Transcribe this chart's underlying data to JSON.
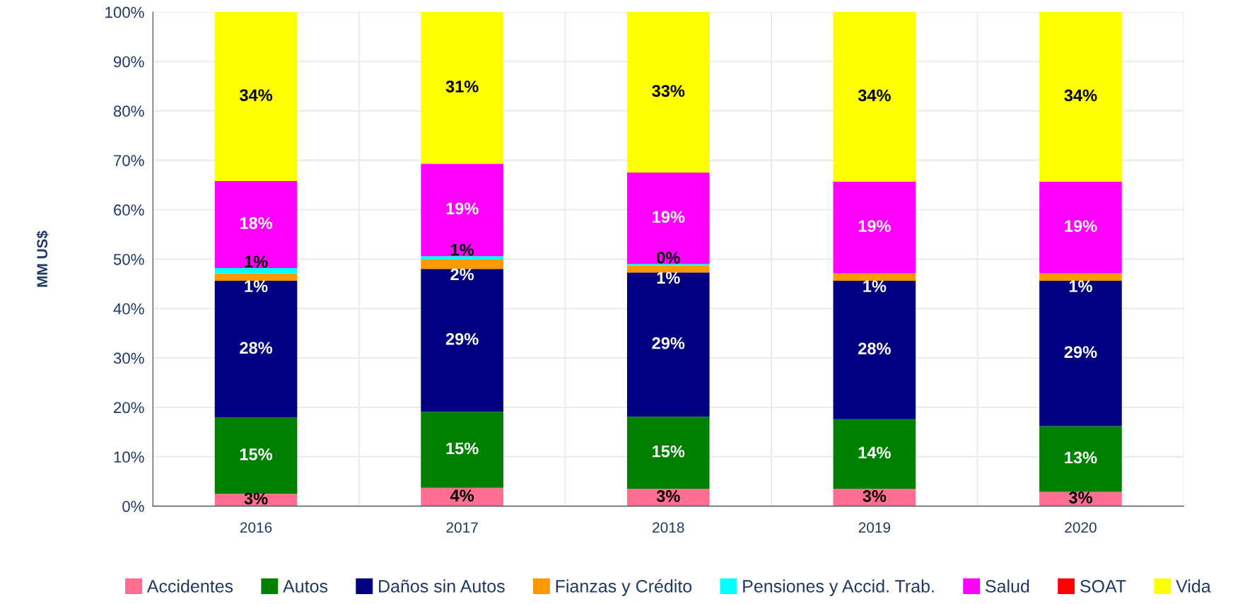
{
  "chart_data": {
    "type": "bar",
    "stacked": true,
    "ylabel": "MM US$",
    "categories": [
      "2016",
      "2017",
      "2018",
      "2019",
      "2020"
    ],
    "series": [
      {
        "name": "Accidentes",
        "color": "#ff6f91",
        "values": [
          2.5,
          3.7,
          3.5,
          3.5,
          2.9
        ],
        "value_labels": [
          "3%",
          "4%",
          "3%",
          "3%",
          "3%"
        ]
      },
      {
        "name": "Autos",
        "color": "#008000",
        "values": [
          15.4,
          15.4,
          14.6,
          14.1,
          13.3
        ],
        "value_labels": [
          "15%",
          "15%",
          "15%",
          "14%",
          "13%"
        ]
      },
      {
        "name": "Daños sin Autos",
        "color": "#000080",
        "values": [
          27.7,
          28.9,
          29.2,
          28.0,
          29.4
        ],
        "value_labels": [
          "28%",
          "29%",
          "29%",
          "28%",
          "29%"
        ]
      },
      {
        "name": "Fianzas y Crédito",
        "color": "#ff9900",
        "values": [
          1.5,
          1.9,
          1.4,
          1.5,
          1.5
        ],
        "value_labels": [
          "1%",
          "2%",
          "1%",
          "1%",
          "1%"
        ]
      },
      {
        "name": "Pensiones y Accid. Trab.",
        "color": "#00ffff",
        "values": [
          1.1,
          0.7,
          0.3,
          0,
          0
        ],
        "value_labels": [
          "1%",
          "1%",
          "0%",
          null,
          null
        ]
      },
      {
        "name": "Salud",
        "color": "#ff00ff",
        "values": [
          17.6,
          18.7,
          18.5,
          18.6,
          18.6
        ],
        "value_labels": [
          "18%",
          "19%",
          "19%",
          "19%",
          "19%"
        ]
      },
      {
        "name": "SOAT",
        "color": "#ff0000",
        "values": [
          0,
          0,
          0,
          0,
          0
        ],
        "value_labels": [
          null,
          null,
          null,
          null,
          null
        ]
      },
      {
        "name": "Vida",
        "color": "#ffff00",
        "values": [
          34.2,
          30.7,
          32.5,
          34.3,
          34.3
        ],
        "value_labels": [
          "34%",
          "31%",
          "33%",
          "34%",
          "34%"
        ]
      }
    ],
    "ylim": [
      0,
      100
    ],
    "yticks": [
      {
        "value": 0,
        "label": "0%"
      },
      {
        "value": 10,
        "label": "10%"
      },
      {
        "value": 20,
        "label": "20%"
      },
      {
        "value": 30,
        "label": "30%"
      },
      {
        "value": 40,
        "label": "40%"
      },
      {
        "value": 50,
        "label": "50%"
      },
      {
        "value": 60,
        "label": "60%"
      },
      {
        "value": 70,
        "label": "70%"
      },
      {
        "value": 80,
        "label": "80%"
      },
      {
        "value": 90,
        "label": "90%"
      },
      {
        "value": 100,
        "label": "100%"
      }
    ],
    "grid": true,
    "legend": "bottom"
  }
}
